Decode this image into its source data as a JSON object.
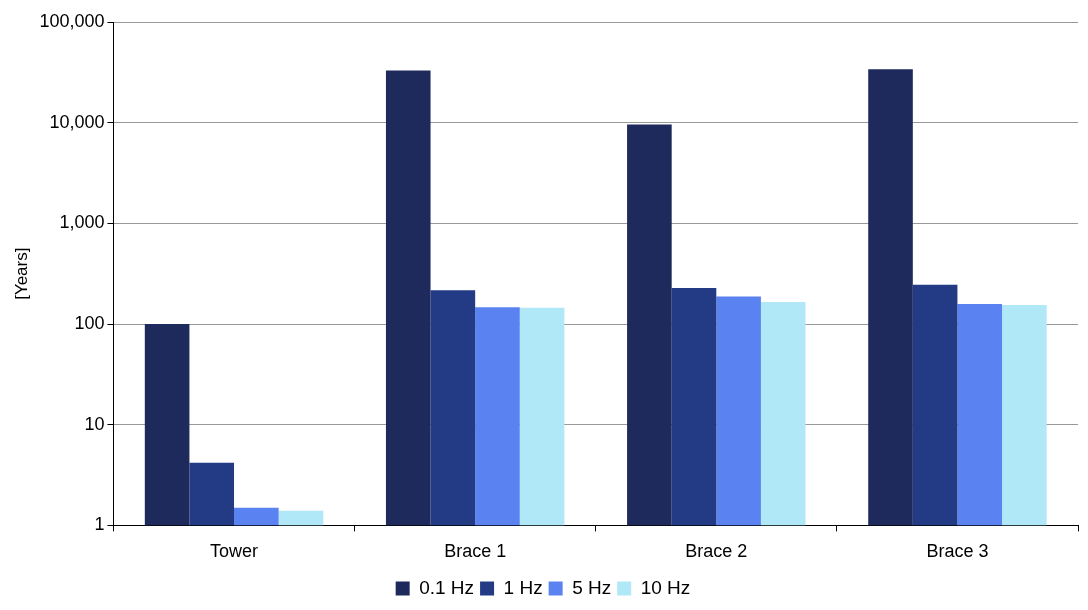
{
  "chart_data": {
    "type": "bar",
    "ylabel": "[Years]",
    "categories": [
      "Tower",
      "Brace 1",
      "Brace 2",
      "Brace 3"
    ],
    "series": [
      {
        "name": "0.1 Hz",
        "color": "#1f2a5c",
        "values": [
          100,
          33000,
          9600,
          34000
        ]
      },
      {
        "name": "1 Hz",
        "color": "#233a85",
        "values": [
          4.2,
          216,
          228,
          245
        ]
      },
      {
        "name": "5 Hz",
        "color": "#5a82f0",
        "values": [
          1.5,
          147,
          188,
          158
        ]
      },
      {
        "name": "10 Hz",
        "color": "#b0e8f8",
        "values": [
          1.4,
          145,
          166,
          155
        ]
      }
    ],
    "log": true,
    "ylim": [
      1,
      100000
    ],
    "yticks": [
      1,
      10,
      100,
      {
        "value": 1000,
        "label": "1,000"
      },
      {
        "value": 10000,
        "label": "10,000"
      },
      {
        "value": 100000,
        "label": "100,000"
      }
    ],
    "grid": "y",
    "legend": "bottom"
  }
}
